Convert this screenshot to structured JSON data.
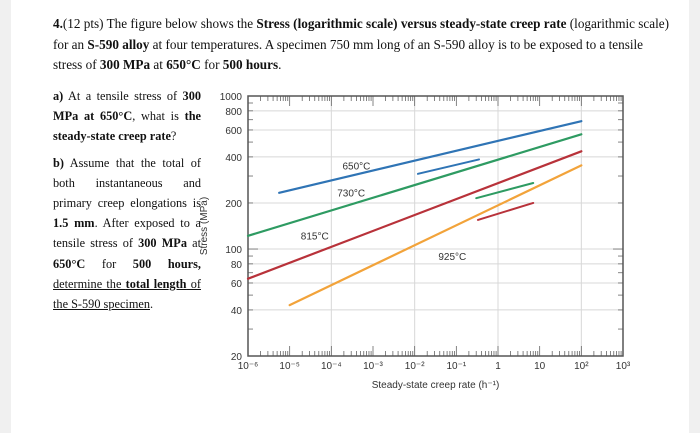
{
  "question": {
    "number": "4.",
    "points": "(12 pts)",
    "intro_1": " The figure below shows the ",
    "intro_bold_1": "Stress (logarithmic scale) versus steady-state creep rate",
    "intro_2": " (logarithmic scale) for an ",
    "intro_bold_2": "S-590 alloy",
    "intro_3": " at four temperatures. A specimen 750 mm long of an S-590 alloy is to be exposed to a tensile stress of ",
    "intro_bold_3": "300 MPa",
    "intro_4": " at ",
    "intro_bold_4": "650°C",
    "intro_5": " for ",
    "intro_bold_5": "500 hours",
    "intro_6": "."
  },
  "part_a": {
    "label": "a)",
    "t1": " At a tensile stress of ",
    "b1": "300 MPa at 650°C",
    "t2": ", what is ",
    "b2": "the steady-state creep rate",
    "t3": "?"
  },
  "part_b": {
    "label": "b)",
    "t1": " Assume that the total of both instantaneous and primary creep elongations is ",
    "b1": "1.5 mm",
    "t2": ". After exposed to a tensile stress of ",
    "b2": "300 MPa",
    "t3": " at ",
    "b3": "650°C",
    "t4": " for ",
    "b4": "500 hours,",
    "u1": "determine the ",
    "ub1": "total length",
    "u2": " of the S-590 specimen",
    "t5": "."
  },
  "chart_data": {
    "type": "line",
    "title": "",
    "xlabel": "Steady-state creep rate (h⁻¹)",
    "ylabel": "Stress (MPa)",
    "xscale": "log",
    "yscale": "log",
    "xlim": [
      1e-06,
      1000
    ],
    "ylim": [
      20,
      1000
    ],
    "grid": true,
    "x_ticks": [
      "10⁻⁶",
      "10⁻⁵",
      "10⁻⁴",
      "10⁻³",
      "10⁻²",
      "10⁻¹",
      "1",
      "10",
      "10²",
      "10³"
    ],
    "x_tick_values": [
      -6,
      -5,
      -4,
      -3,
      -2,
      -1,
      0,
      1,
      2,
      3
    ],
    "y_ticks": [
      1000,
      800,
      600,
      400,
      200,
      100,
      80,
      60,
      40,
      20
    ],
    "series": [
      {
        "name": "650°C",
        "color": "#2f74b5",
        "points": [
          [
            5.6e-06,
            233
          ],
          [
            100,
            685
          ]
        ]
      },
      {
        "name": "730°C",
        "color": "#2e9b62",
        "points": [
          [
            1e-06,
            122
          ],
          [
            100,
            562
          ]
        ]
      },
      {
        "name": "815°C",
        "color": "#b8323a",
        "points": [
          [
            1e-06,
            64
          ],
          [
            100,
            435
          ]
        ]
      },
      {
        "name": "925°C",
        "color": "#f2a33a",
        "points": [
          [
            1e-05,
            43
          ],
          [
            100,
            352
          ]
        ]
      }
    ],
    "annotations": [
      {
        "text": "650°C",
        "at": [
          0.0004,
          330
        ]
      },
      {
        "text": "730°C",
        "at": [
          0.0003,
          220
        ]
      },
      {
        "text": "815°C",
        "at": [
          4e-05,
          115
        ]
      },
      {
        "text": "925°C",
        "at": [
          0.08,
          85
        ]
      }
    ],
    "overlay_segments": [
      {
        "color": "#2f74b5",
        "from": [
          0.012,
          310
        ],
        "to": [
          0.35,
          385
        ]
      },
      {
        "color": "#2e9b62",
        "from": [
          0.3,
          215
        ],
        "to": [
          7,
          270
        ]
      },
      {
        "color": "#b8323a",
        "from": [
          0.33,
          155
        ],
        "to": [
          7,
          200
        ]
      }
    ]
  }
}
